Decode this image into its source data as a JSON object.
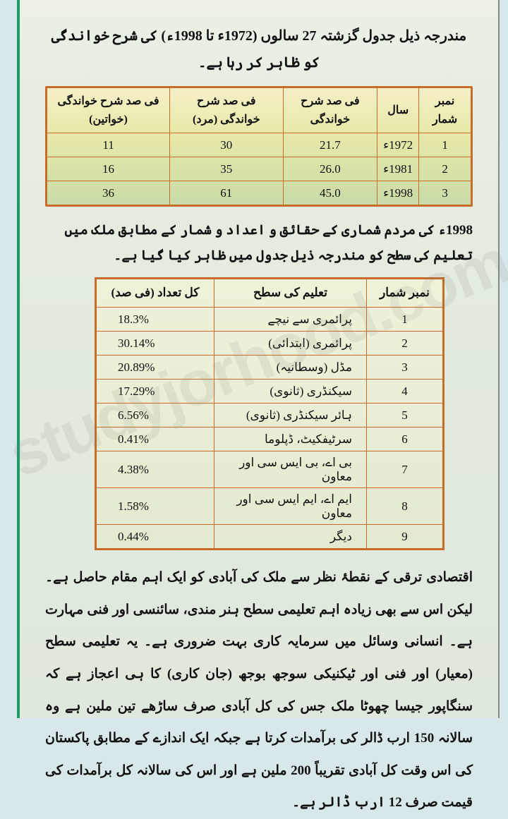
{
  "watermark": "studyjorhood.com",
  "intro_1": "مندرجہ ذیل جدول گزشتہ 27 سالوں (1972ء تا 1998ء) کی شرح خواندگی کو ظاہر کر رہا ہے۔",
  "table1": {
    "headers": {
      "serial": "نمبر شمار",
      "year": "سال",
      "literacy": "فی صد شرح خواندگی",
      "male": "فی صد شرح خواندگی (مرد)",
      "female": "فی صد شرح خواندگی (خواتین)"
    },
    "rows": [
      {
        "n": "1",
        "year": "1972ء",
        "lit": "21.7",
        "m": "30",
        "f": "11"
      },
      {
        "n": "2",
        "year": "1981ء",
        "lit": "26.0",
        "m": "35",
        "f": "16"
      },
      {
        "n": "3",
        "year": "1998ء",
        "lit": "45.0",
        "m": "61",
        "f": "36"
      }
    ],
    "border_color": "#c96b2a",
    "bg_gradient": [
      "#f5f0c8",
      "#e8e8a8",
      "#c8dca8"
    ]
  },
  "intro_2": "1998ء کی مردم شماری کے حقائق و اعداد و شمار کے مطابق ملک میں تعلیم کی سطح کو مندرجہ ذیل جدول میں ظاہر کیا گیا ہے۔",
  "table2": {
    "headers": {
      "serial": "نمبر شمار",
      "level": "تعلیم کی سطح",
      "pct": "کل تعداد (فی صد)"
    },
    "rows": [
      {
        "n": "1",
        "level": "پرائمری سے نیچے",
        "pct": "18.3%"
      },
      {
        "n": "2",
        "level": "پرائمری (ابتدائی)",
        "pct": "30.14%"
      },
      {
        "n": "3",
        "level": "مڈل (وسطانیہ)",
        "pct": "20.89%"
      },
      {
        "n": "4",
        "level": "سیکنڈری (ثانوی)",
        "pct": "17.29%"
      },
      {
        "n": "5",
        "level": "ہائر سیکنڈری (ثانوی)",
        "pct": "6.56%"
      },
      {
        "n": "6",
        "level": "سرٹیفکیٹ، ڈپلوما",
        "pct": "0.41%"
      },
      {
        "n": "7",
        "level": "بی اے، بی ایس سی اور معاون",
        "pct": "4.38%"
      },
      {
        "n": "8",
        "level": "ایم اے، ایم ایس سی اور معاون",
        "pct": "1.58%"
      },
      {
        "n": "9",
        "level": "دیگر",
        "pct": "0.44%"
      }
    ],
    "border_color": "#c96b2a"
  },
  "paragraph": "اقتصادی ترقی کے نقطۂ نظر سے ملک کی آبادی کو ایک اہم مقام حاصل ہے۔ لیکن اس سے بھی زیادہ اہم تعلیمی سطح ہنر مندی، سائنسی اور فنی مہارت ہے۔ انسانی وسائل میں سرمایہ کاری بہت ضروری ہے۔ یہ تعلیمی سطح (معیار) اور فنی اور ٹیکنیکی سوجھ بوجھ (جان کاری) کا ہی اعجاز ہے کہ سنگاپور جیسا چھوٹا ملک جس کی کل آبادی صرف ساڑھے تین ملین ہے وہ سالانہ 150 ارب ڈالر کی برآمدات کرتا ہے جبکہ ایک اندازے کے مطابق پاکستان کی اس وقت کل آبادی تقریباً 200 ملین ہے اور اس کی سالانہ کل برآمدات کی قیمت صرف 12 ارب ڈالر ہے۔"
}
